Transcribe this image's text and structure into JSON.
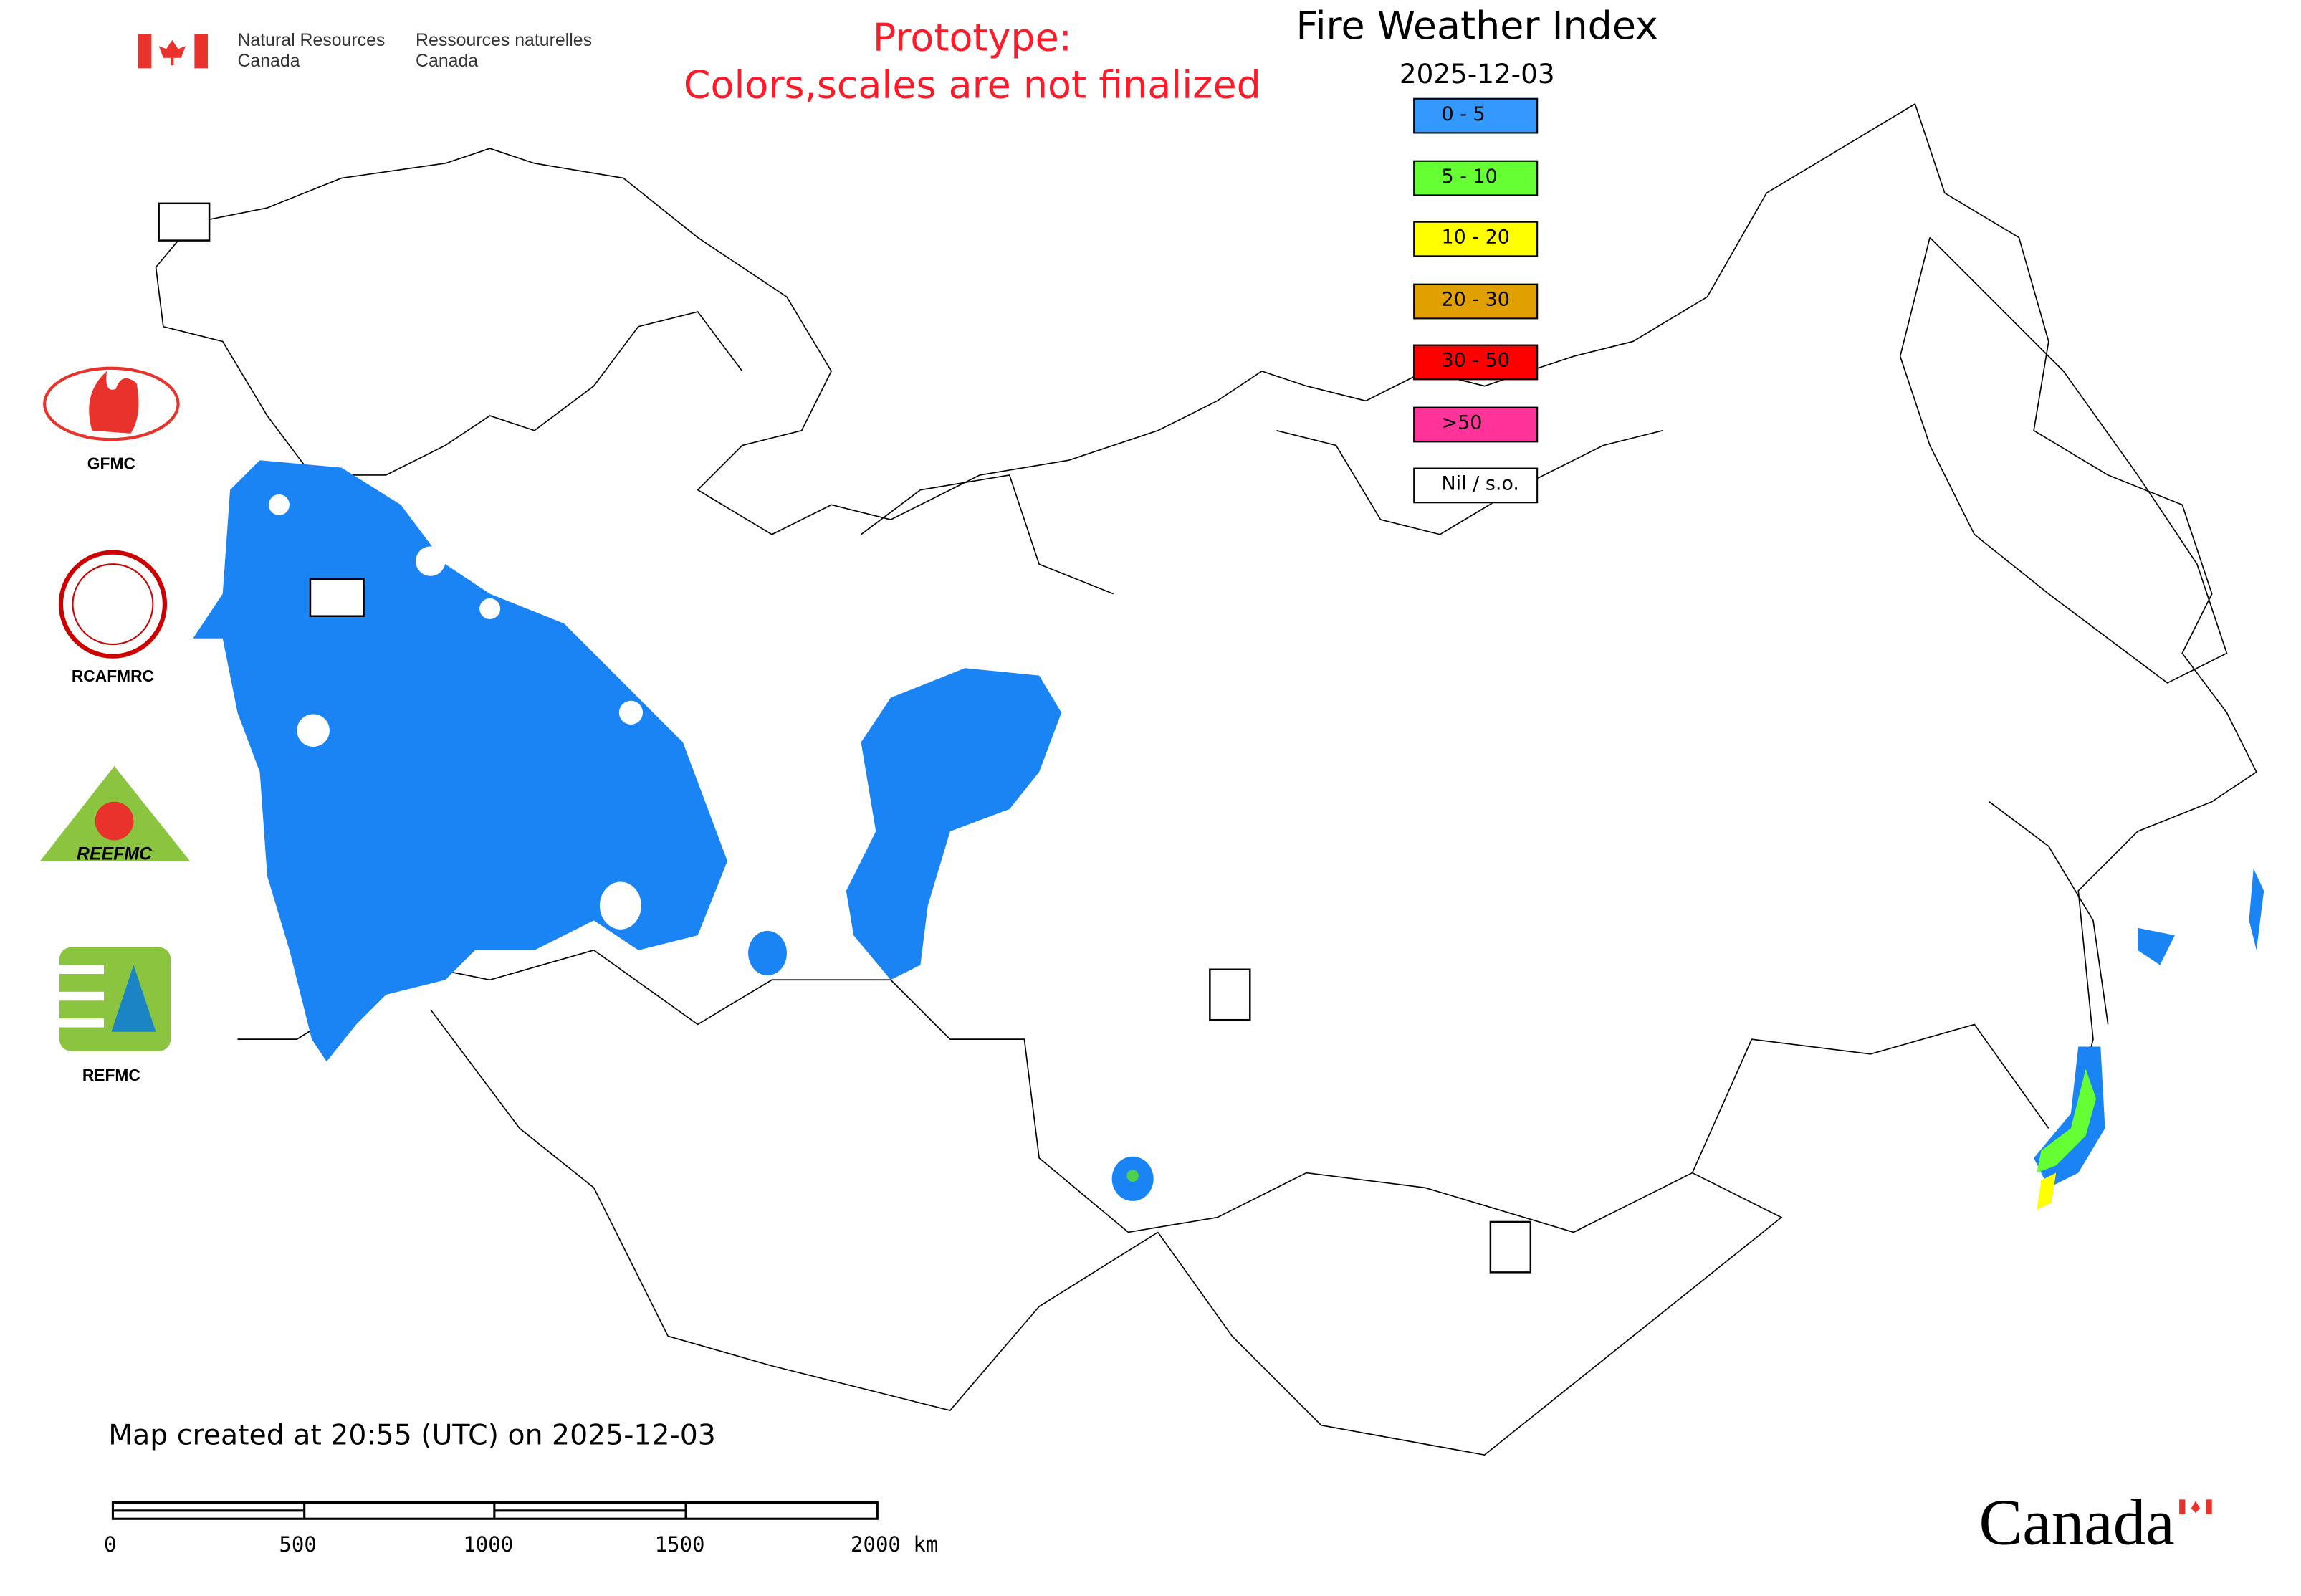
{
  "header": {
    "org_en_line1": "Natural Resources",
    "org_en_line2": "Canada",
    "org_fr_line1": "Ressources naturelles",
    "org_fr_line2": "Canada",
    "prototype_line1": "Prototype:",
    "prototype_line2": "Colors,scales are not finalized",
    "title": "Fire Weather Index",
    "date": "2025-12-03"
  },
  "legend": [
    {
      "label": "0 - 5",
      "color": "#3399ff"
    },
    {
      "label": "5 - 10",
      "color": "#66ff33"
    },
    {
      "label": "10 - 20",
      "color": "#ffff00"
    },
    {
      "label": "20 - 30",
      "color": "#e0a000"
    },
    {
      "label": "30 - 50",
      "color": "#ff0000"
    },
    {
      "label": ">50",
      "color": "#ff3399"
    },
    {
      "label": "Nil / s.o.",
      "color": "#ffffff"
    }
  ],
  "logos": [
    {
      "label": "GFMC"
    },
    {
      "label": "RCAFMRC"
    },
    {
      "label": "REEFMC"
    },
    {
      "label": "REFMC"
    }
  ],
  "footer": {
    "created": "Map created at 20:55 (UTC) on 2025-12-03",
    "scale_ticks": [
      "0",
      "500",
      "1000",
      "1500",
      "2000 km"
    ],
    "wordmark": "Canada"
  }
}
